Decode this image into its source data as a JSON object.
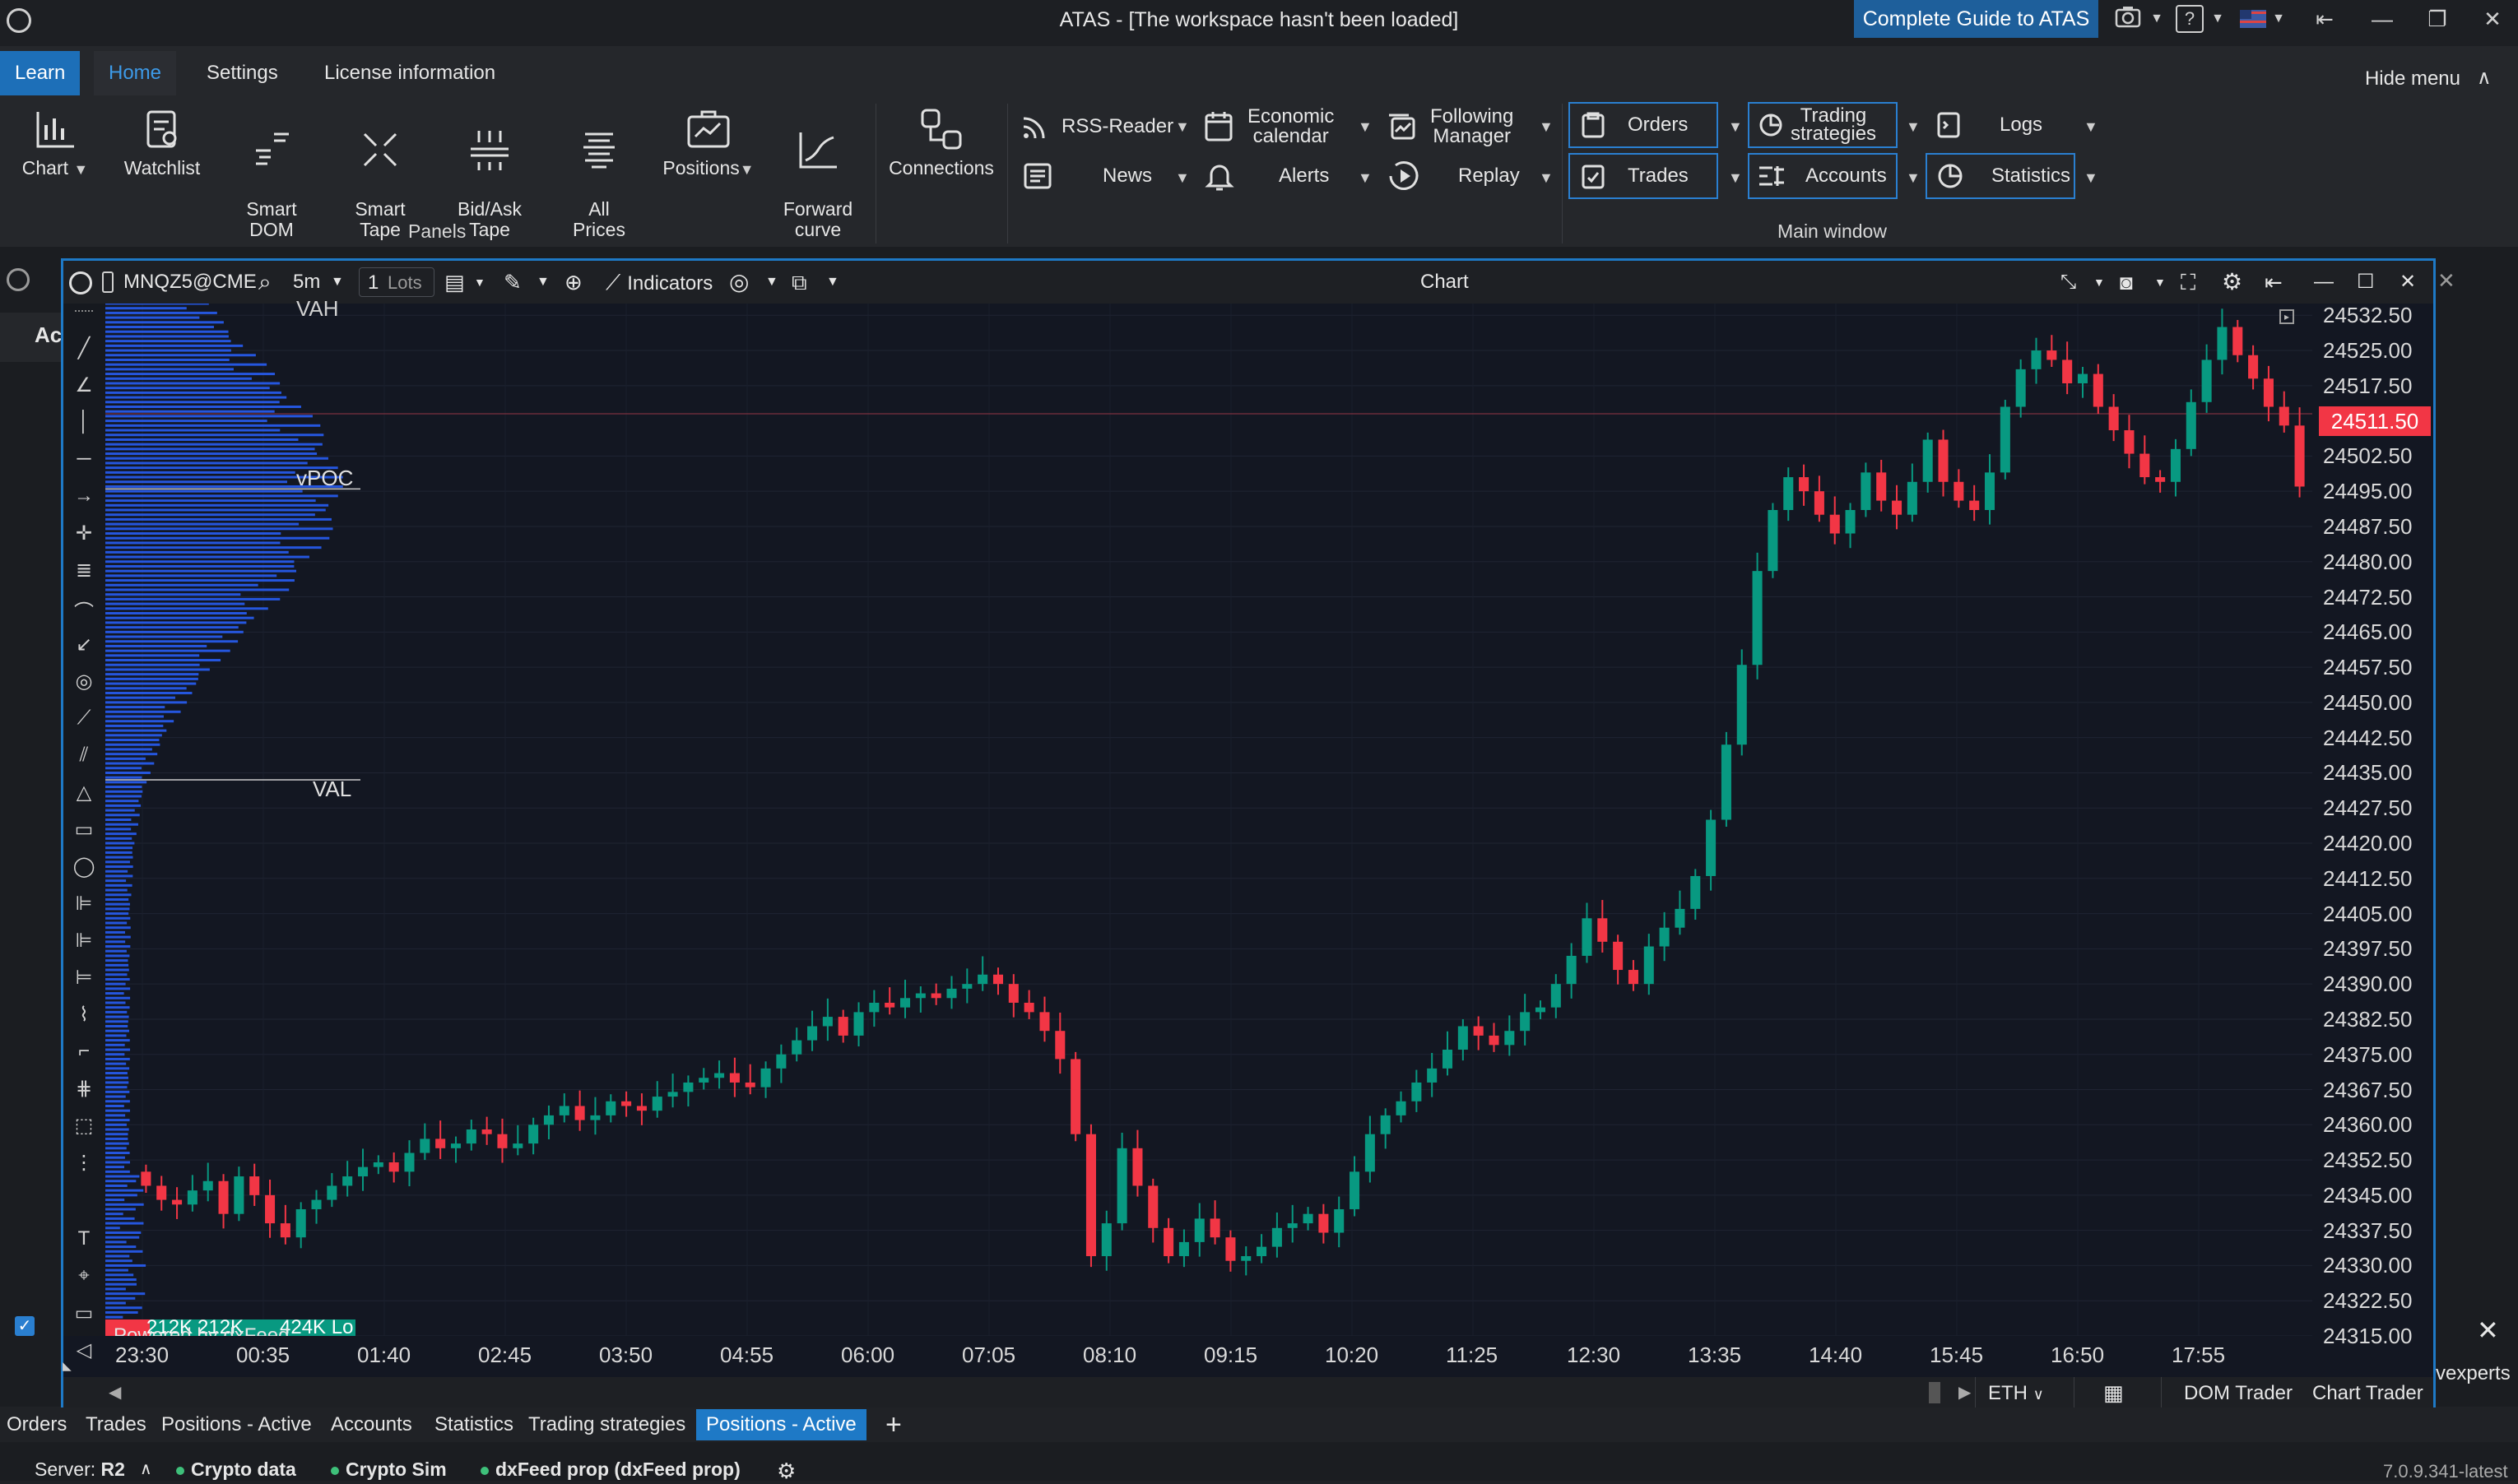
{
  "window": {
    "title": "ATAS - [The workspace hasn't been loaded]",
    "guide_button": "Complete Guide to ATAS",
    "help_label": "?"
  },
  "menu": {
    "tabs": [
      "Learn",
      "Home",
      "Settings",
      "License information"
    ],
    "hide_menu": "Hide menu"
  },
  "ribbon": {
    "panel_buttons": [
      {
        "label": "Chart",
        "icon": "chart-icon"
      },
      {
        "label": "Watchlist",
        "icon": "watchlist-icon"
      },
      {
        "label": "Smart\nDOM",
        "icon": "smart-dom-icon"
      },
      {
        "label": "Smart\nTape",
        "icon": "smart-tape-icon"
      },
      {
        "label": "Bid/Ask\nTape",
        "icon": "bid-ask-tape-icon"
      },
      {
        "label": "All\nPrices",
        "icon": "all-prices-icon"
      },
      {
        "label": "Positions",
        "icon": "positions-icon"
      },
      {
        "label": "Forward\ncurve",
        "icon": "forward-curve-icon"
      }
    ],
    "panels_group_label": "Panels",
    "connections_label": "Connections",
    "middle": [
      {
        "label": "RSS-Reader",
        "icon": "rss-icon"
      },
      {
        "label": "News",
        "icon": "news-icon"
      },
      {
        "label": "Economic\ncalendar",
        "icon": "calendar-icon"
      },
      {
        "label": "Alerts",
        "icon": "bell-icon"
      },
      {
        "label": "Following\nManager",
        "icon": "following-icon"
      },
      {
        "label": "Replay",
        "icon": "replay-icon"
      }
    ],
    "main_window": [
      {
        "label": "Orders"
      },
      {
        "label": "Trades"
      },
      {
        "label": "Trading\nstrategies"
      },
      {
        "label": "Accounts"
      },
      {
        "label": "Logs"
      },
      {
        "label": "Statistics"
      }
    ],
    "main_window_label": "Main window"
  },
  "chart": {
    "title": "Chart",
    "symbol": "MNQZ5@CME",
    "timeframe": "5m",
    "lots_value": "1",
    "lots_unit": "Lots",
    "indicators_label": "Indicators",
    "current_price": "24511.50",
    "profile_labels": {
      "vah": "VAH",
      "vpoc": "vPOC",
      "val": "VAL"
    },
    "volume_bar_texts": [
      "212K",
      "212K",
      "424K Lo"
    ],
    "powered_by": "Powered by dxFeed",
    "session": "ETH",
    "footer_buttons": [
      "DOM Trader",
      "Chart Trader"
    ],
    "side_text": "vexperts",
    "side_text_prefix": "Ac"
  },
  "chart_data": {
    "type": "candlestick",
    "x_ticks": [
      "23:30",
      "00:35",
      "01:40",
      "02:45",
      "03:50",
      "04:55",
      "06:00",
      "07:05",
      "08:10",
      "09:15",
      "10:20",
      "11:25",
      "12:30",
      "13:35",
      "14:40",
      "15:45",
      "16:50",
      "17:55"
    ],
    "y_ticks": [
      "24532.50",
      "24525.00",
      "24517.50",
      "24502.50",
      "24495.00",
      "24487.50",
      "24480.00",
      "24472.50",
      "24465.00",
      "24457.50",
      "24450.00",
      "24442.50",
      "24435.00",
      "24427.50",
      "24420.00",
      "24412.50",
      "24405.00",
      "24397.50",
      "24390.00",
      "24382.50",
      "24375.00",
      "24367.50",
      "24360.00",
      "24352.50",
      "24345.00",
      "24337.50",
      "24330.00",
      "24322.50",
      "24315.00"
    ],
    "ylim": [
      24315.0,
      24535.0
    ],
    "last_price": 24511.5,
    "closes": [
      24347,
      24344,
      24343,
      24346,
      24348,
      24341,
      24349,
      24345,
      24339,
      24336,
      24342,
      24344,
      24347,
      24349,
      24351,
      24352,
      24350,
      24354,
      24357,
      24355,
      24356,
      24359,
      24358,
      24355,
      24356,
      24360,
      24362,
      24364,
      24361,
      24362,
      24365,
      24364,
      24363,
      24366,
      24367,
      24369,
      24370,
      24371,
      24369,
      24368,
      24372,
      24375,
      24378,
      24381,
      24383,
      24379,
      24384,
      24386,
      24385,
      24387,
      24388,
      24387,
      24389,
      24390,
      24392,
      24390,
      24386,
      24384,
      24380,
      24374,
      24358,
      24332,
      24339,
      24355,
      24347,
      24338,
      24332,
      24335,
      24340,
      24336,
      24331,
      24332,
      24334,
      24338,
      24339,
      24341,
      24337,
      24342,
      24350,
      24358,
      24362,
      24365,
      24369,
      24372,
      24376,
      24381,
      24379,
      24377,
      24380,
      24384,
      24385,
      24390,
      24396,
      24404,
      24399,
      24393,
      24390,
      24398,
      24402,
      24406,
      24413,
      24425,
      24441,
      24458,
      24478,
      24491,
      24498,
      24495,
      24490,
      24486,
      24491,
      24499,
      24493,
      24490,
      24497,
      24506,
      24497,
      24493,
      24491,
      24499,
      24513,
      24521,
      24525,
      24523,
      24518,
      24520,
      24513,
      24508,
      24503,
      24498,
      24497,
      24504,
      24514,
      24523,
      24530,
      24524,
      24519,
      24513,
      24509,
      24496
    ]
  },
  "bottom_tabs": [
    "Orders",
    "Trades",
    "Positions - Active",
    "Accounts",
    "Statistics",
    "Trading strategies",
    "Positions - Active"
  ],
  "status": {
    "server_label": "Server:",
    "server_value": "R2",
    "items": [
      "Crypto data",
      "Crypto Sim",
      "dxFeed prop (dxFeed prop)"
    ],
    "version": "7.0.9.341-latest"
  },
  "colors": {
    "accent": "#1e79c6",
    "up": "#089981",
    "down": "#f23645",
    "profile": "#2962ff",
    "bg": "#131722"
  }
}
